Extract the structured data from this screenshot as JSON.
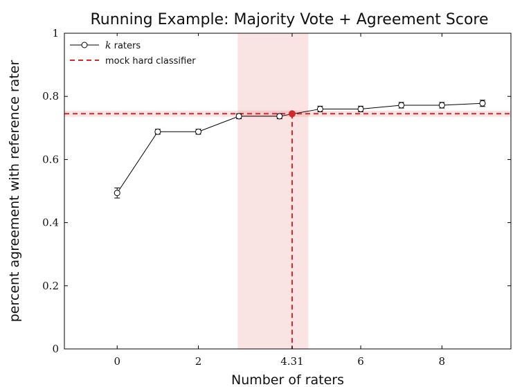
{
  "chart_data": {
    "type": "line",
    "title": "Running Example: Majority Vote + Agreement Score",
    "xlabel": "Number of raters",
    "ylabel": "percent agreement with reference rater",
    "xlim": [
      -1.3,
      9.7
    ],
    "ylim": [
      0,
      1
    ],
    "x_ticks": [
      {
        "value": 0,
        "label": "0"
      },
      {
        "value": 2,
        "label": "2"
      },
      {
        "value": 4.31,
        "label": "4.31"
      },
      {
        "value": 6,
        "label": "6"
      },
      {
        "value": 8,
        "label": "8"
      }
    ],
    "y_ticks": [
      {
        "value": 0,
        "label": "0"
      },
      {
        "value": 0.2,
        "label": "0.2"
      },
      {
        "value": 0.4,
        "label": "0.4"
      },
      {
        "value": 0.6,
        "label": "0.6"
      },
      {
        "value": 0.8,
        "label": "0.8"
      },
      {
        "value": 1,
        "label": "1"
      }
    ],
    "grid": false,
    "legend_position": "top-left",
    "series": [
      {
        "name": "k raters",
        "color": "#000000",
        "marker": "circle",
        "x": [
          0,
          1,
          2,
          3,
          4,
          5,
          6,
          7,
          8,
          9
        ],
        "y": [
          0.494,
          0.688,
          0.688,
          0.737,
          0.737,
          0.76,
          0.76,
          0.772,
          0.772,
          0.778
        ],
        "error": [
          0.016,
          0.008,
          0.008,
          0.008,
          0.008,
          0.009,
          0.009,
          0.009,
          0.009,
          0.01
        ]
      }
    ],
    "reference": {
      "name": "mock hard classifier",
      "color": "#d62728",
      "y": 0.745,
      "band": [
        0.735,
        0.755
      ],
      "x_intersect": 4.31,
      "x_band": [
        2.97,
        4.71
      ]
    },
    "legend_entries": [
      {
        "prefix": "k",
        "suffix": " raters"
      },
      {
        "text": "mock hard classifier"
      }
    ]
  }
}
